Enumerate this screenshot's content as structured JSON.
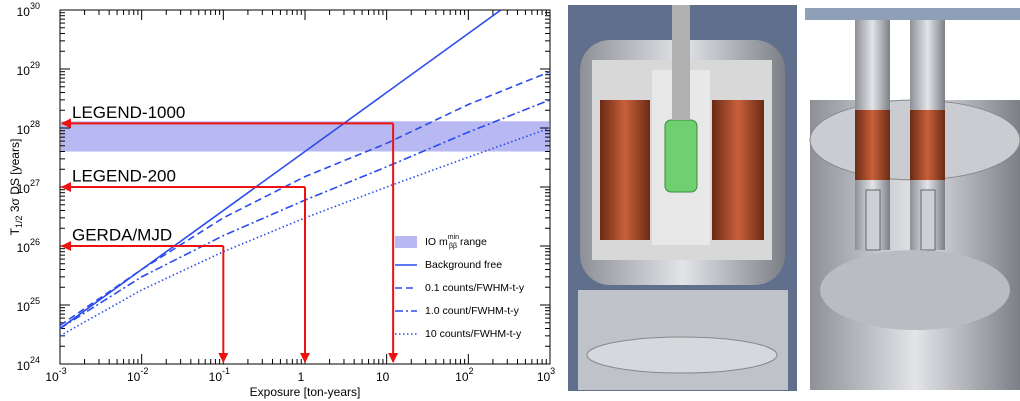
{
  "chart_data": {
    "type": "line",
    "log_x": true,
    "log_y": true,
    "xlim": [
      0.001,
      1000
    ],
    "ylim": [
      1e+24,
      1e+30
    ],
    "xticks": [
      {
        "value": 0.001,
        "label": "10",
        "exponent": "-3"
      },
      {
        "value": 0.01,
        "label": "10",
        "exponent": "-2"
      },
      {
        "value": 0.1,
        "label": "10",
        "exponent": "-1"
      },
      {
        "value": 1,
        "label": "1"
      },
      {
        "value": 10,
        "label": "10"
      },
      {
        "value": 100,
        "label": "10",
        "exponent": "2"
      },
      {
        "value": 1000,
        "label": "10",
        "exponent": "3"
      }
    ],
    "yticks": [
      {
        "value": 1e+24,
        "label": "10",
        "exponent": "24"
      },
      {
        "value": 1e+25,
        "label": "10",
        "exponent": "25"
      },
      {
        "value": 1e+26,
        "label": "10",
        "exponent": "26"
      },
      {
        "value": 1e+27,
        "label": "10",
        "exponent": "27"
      },
      {
        "value": 1e+28,
        "label": "10",
        "exponent": "28"
      },
      {
        "value": 1e+29,
        "label": "10",
        "exponent": "29"
      },
      {
        "value": 1e+30,
        "label": "10",
        "exponent": "30"
      }
    ],
    "xlabel": "Exposure [ton-years]",
    "ylabel": {
      "main": "T",
      "sub": "1/2",
      "rest": " 3σ DS [years]"
    },
    "legend": "lower right",
    "band": {
      "name": {
        "main": "IO m",
        "sup": "min",
        "sub": "ββ",
        "rest": " range"
      },
      "low": 4e+27,
      "high": 1.3e+28,
      "color": "#b8b8f2"
    },
    "series": [
      {
        "name": "Background free",
        "color": "#2b4bee",
        "dash": "solid",
        "x": [
          0.001,
          250
        ],
        "values": [
          4e+24,
          1e+30
        ]
      },
      {
        "name": "0.1 counts/FWHM-t-y",
        "color": "#2b4bee",
        "dash": "dashed",
        "x": [
          0.001,
          0.01,
          0.1,
          1,
          10,
          100,
          1000
        ],
        "values": [
          4.5e+24,
          4e+25,
          3e+26,
          1.5e+27,
          5.5e+27,
          2.5e+28,
          9e+28
        ]
      },
      {
        "name": "1.0 count/FWHM-t-y",
        "color": "#2b4bee",
        "dash": "dashdot",
        "x": [
          0.001,
          0.01,
          0.1,
          1,
          10,
          100,
          1000
        ],
        "values": [
          4e+24,
          3e+25,
          1.5e+26,
          6e+26,
          2.2e+27,
          8.5e+27,
          3e+28
        ]
      },
      {
        "name": "10 counts/FWHM-t-y",
        "color": "#2b4bee",
        "dash": "dotted",
        "x": [
          0.001,
          0.01,
          0.1,
          1,
          10,
          100,
          1000
        ],
        "values": [
          3e+24,
          1.8e+25,
          8e+25,
          3e+26,
          1e+27,
          3.2e+27,
          1e+28
        ]
      }
    ],
    "arrows": [
      {
        "label": "LEGEND-1000",
        "x": 12,
        "y": 1.2e+28,
        "color": "#ee1111"
      },
      {
        "label": "LEGEND-200",
        "x": 1,
        "y": 1e+27,
        "color": "#ee1111"
      },
      {
        "label": "GERDA/MJD",
        "x": 0.1,
        "y": 1e+26,
        "color": "#ee1111"
      }
    ]
  }
}
